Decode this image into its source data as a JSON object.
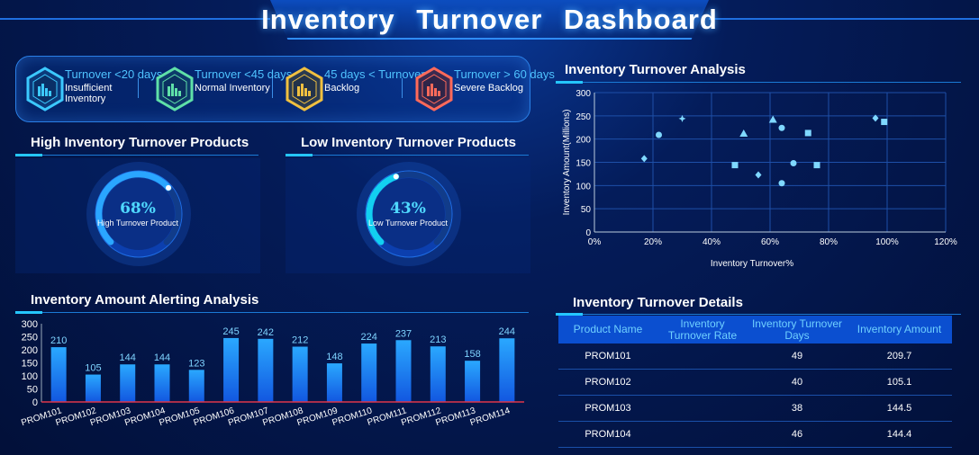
{
  "header": {
    "title": "Inventory  Turnover  Dashboard"
  },
  "status_cards": [
    {
      "line1": "Turnover <20 days",
      "line2": "Insufficient Inventory",
      "color": "#3cc9ff",
      "icon": "bar-chart-hexagon-icon"
    },
    {
      "line1": "Turnover <45 days",
      "line2": "Normal Inventory",
      "color": "#5fe0a8",
      "icon": "bar-chart-hexagon-icon"
    },
    {
      "line1": "45 days < Turnover <",
      "line2": "Backlog",
      "color": "#f0c040",
      "icon": "bar-chart-hexagon-icon"
    },
    {
      "line1": "Turnover > 60 days",
      "line2": "Severe Backlog",
      "color": "#ff6a5a",
      "icon": "bar-chart-hexagon-icon"
    }
  ],
  "high_panel": {
    "title": "High Inventory Turnover Products",
    "percent_text": "68%",
    "label": "High Turnover Product",
    "value": 0.68
  },
  "low_panel": {
    "title": "Low Inventory Turnover Products",
    "percent_text": "43%",
    "label": "Low Turnover Product",
    "value": 0.43
  },
  "alert_panel": {
    "title": "Inventory Amount  Alerting Analysis"
  },
  "scatter_panel": {
    "title": "Inventory Turnover Analysis"
  },
  "details_panel": {
    "title": "Inventory Turnover Details",
    "columns": [
      "Product Name",
      "Inventory Turnover Rate",
      "Inventory Turnover Days",
      "Inventory Amount"
    ],
    "rows": [
      {
        "name": "PROM101",
        "rate": "",
        "days": "49",
        "amount": "209.7"
      },
      {
        "name": "PROM102",
        "rate": "",
        "days": "40",
        "amount": "105.1"
      },
      {
        "name": "PROM103",
        "rate": "",
        "days": "38",
        "amount": "144.5"
      },
      {
        "name": "PROM104",
        "rate": "",
        "days": "46",
        "amount": "144.4"
      }
    ]
  },
  "chart_data": [
    {
      "type": "bar",
      "title": "Inventory Amount  Alerting Analysis",
      "categories": [
        "PROM101",
        "PROM102",
        "PROM103",
        "PROM104",
        "PROM105",
        "PROM106",
        "PROM107",
        "PROM108",
        "PROM109",
        "PROM110",
        "PROM111",
        "PROM112",
        "PROM113",
        "PROM114"
      ],
      "values": [
        210,
        105,
        144,
        144,
        123,
        245,
        242,
        212,
        148,
        224,
        237,
        213,
        158,
        244
      ],
      "ylim": [
        0,
        300
      ],
      "yticks": [
        0,
        50,
        100,
        150,
        200,
        250,
        300
      ],
      "grid": false,
      "color": "#1e90ff"
    },
    {
      "type": "scatter",
      "title": "Inventory Turnover Analysis",
      "xlabel": "Inventory Turnover%",
      "ylabel": "Inventory Amount(Millions)",
      "xlim": [
        0,
        120
      ],
      "ylim": [
        0,
        300
      ],
      "xticks": [
        "0%",
        "20%",
        "40%",
        "60%",
        "80%",
        "100%",
        "120%"
      ],
      "yticks": [
        0,
        50,
        100,
        150,
        200,
        250,
        300
      ],
      "grid": true,
      "points": [
        {
          "x": 17,
          "y": 158,
          "shape": "diamond"
        },
        {
          "x": 22,
          "y": 209,
          "shape": "circle"
        },
        {
          "x": 30,
          "y": 244,
          "shape": "star"
        },
        {
          "x": 48,
          "y": 144,
          "shape": "square"
        },
        {
          "x": 51,
          "y": 212,
          "shape": "triangle"
        },
        {
          "x": 56,
          "y": 123,
          "shape": "diamond"
        },
        {
          "x": 61,
          "y": 242,
          "shape": "triangle"
        },
        {
          "x": 64,
          "y": 224,
          "shape": "circle"
        },
        {
          "x": 64,
          "y": 105,
          "shape": "circle"
        },
        {
          "x": 68,
          "y": 148,
          "shape": "circle"
        },
        {
          "x": 73,
          "y": 213,
          "shape": "square"
        },
        {
          "x": 76,
          "y": 144,
          "shape": "square"
        },
        {
          "x": 96,
          "y": 245,
          "shape": "diamond"
        },
        {
          "x": 99,
          "y": 237,
          "shape": "square"
        }
      ]
    }
  ]
}
